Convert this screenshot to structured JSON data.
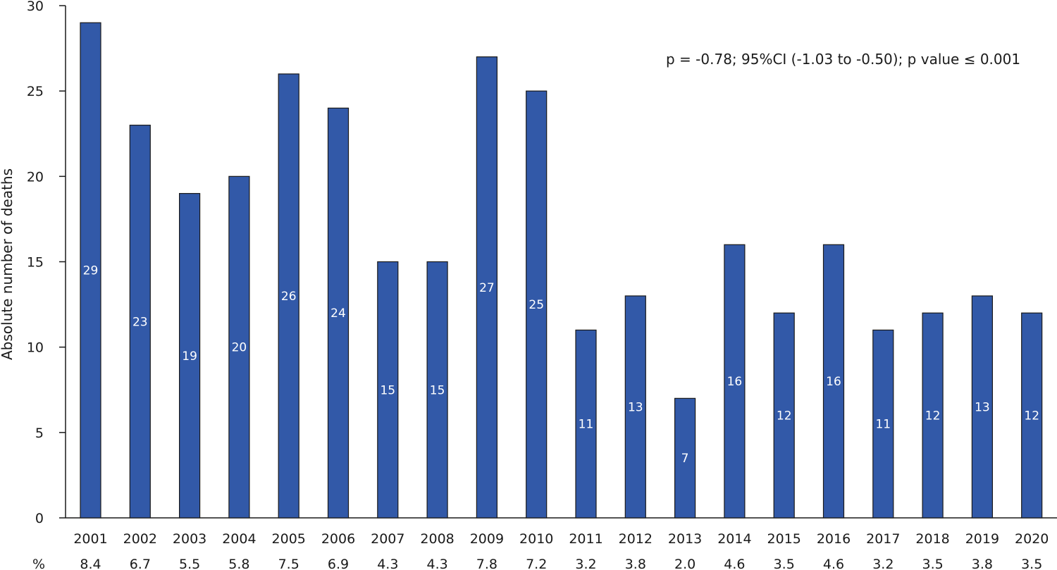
{
  "chart_data": {
    "type": "bar",
    "title": "",
    "ylabel": "Absolute number of deaths",
    "xlabel": "",
    "ylim": [
      0,
      30
    ],
    "yticks": [
      0,
      5,
      10,
      15,
      20,
      25,
      30
    ],
    "grid": false,
    "bar_color": "#3259a8",
    "annotation": "p = -0.78; 95%CI (-1.03 to -0.50); p value ≤ 0.001",
    "percent_row_label": "%",
    "categories": [
      "2001",
      "2002",
      "2003",
      "2004",
      "2005",
      "2006",
      "2007",
      "2008",
      "2009",
      "2010",
      "2011",
      "2012",
      "2013",
      "2014",
      "2015",
      "2016",
      "2017",
      "2018",
      "2019",
      "2020"
    ],
    "values": [
      29,
      23,
      19,
      20,
      26,
      24,
      15,
      15,
      27,
      25,
      11,
      13,
      7,
      16,
      12,
      16,
      11,
      12,
      13,
      12
    ],
    "percents": [
      "8.4",
      "6.7",
      "5.5",
      "5.8",
      "7.5",
      "6.9",
      "4.3",
      "4.3",
      "7.8",
      "7.2",
      "3.2",
      "3.8",
      "2.0",
      "4.6",
      "3.5",
      "4.6",
      "3.2",
      "3.5",
      "3.8",
      "3.5"
    ]
  }
}
